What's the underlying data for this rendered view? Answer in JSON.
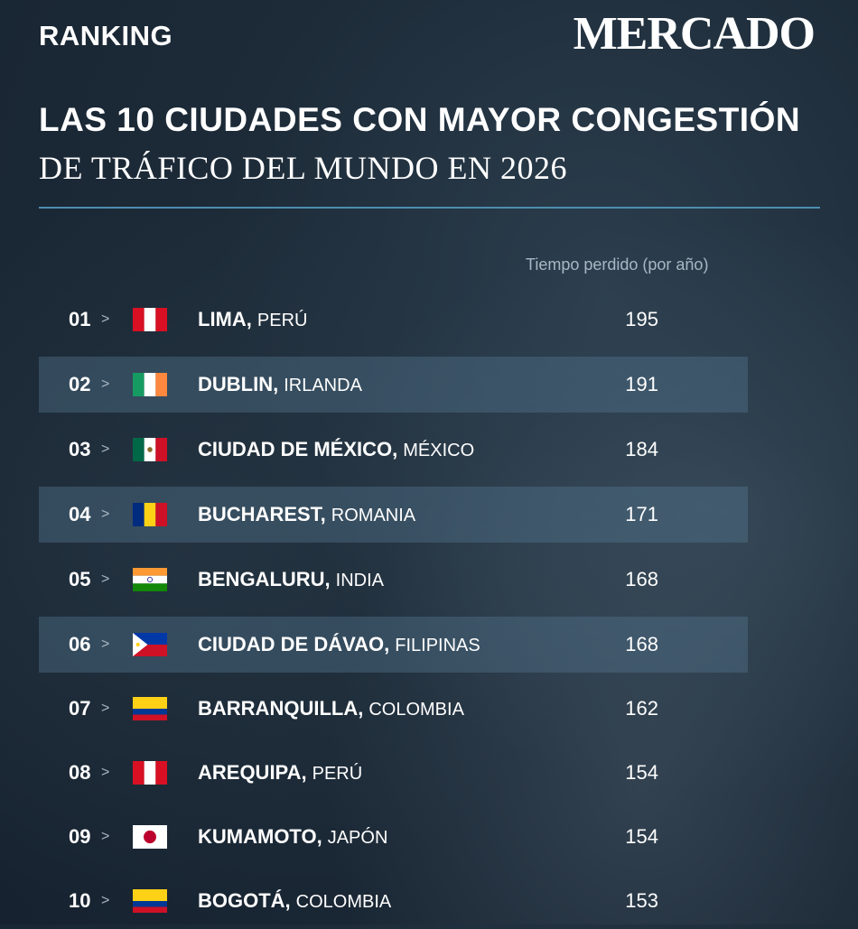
{
  "header": {
    "label": "RANKING",
    "brand": "MERCADO",
    "title_line1": "LAS 10 CIUDADES CON MAYOR CONGESTIÓN",
    "title_line2": "DE TRÁFICO DEL MUNDO EN 2026"
  },
  "table": {
    "column_header": "Tiempo perdido (por año)",
    "arrow": ">",
    "rows": [
      {
        "rank": "01",
        "city": "LIMA,",
        "country": "PERÚ",
        "value": "195",
        "flag": "peru-flag-icon"
      },
      {
        "rank": "02",
        "city": "DUBLIN,",
        "country": "IRLANDA",
        "value": "191",
        "flag": "ireland-flag-icon"
      },
      {
        "rank": "03",
        "city": "CIUDAD DE MÉXICO,",
        "country": "MÉXICO",
        "value": "184",
        "flag": "mexico-flag-icon"
      },
      {
        "rank": "04",
        "city": "BUCHAREST,",
        "country": "ROMANIA",
        "value": "171",
        "flag": "romania-flag-icon"
      },
      {
        "rank": "05",
        "city": "BENGALURU,",
        "country": "INDIA",
        "value": "168",
        "flag": "india-flag-icon"
      },
      {
        "rank": "06",
        "city": "CIUDAD DE DÁVAO,",
        "country": "FILIPINAS",
        "value": "168",
        "flag": "philippines-flag-icon"
      },
      {
        "rank": "07",
        "city": "BARRANQUILLA,",
        "country": "COLOMBIA",
        "value": "162",
        "flag": "colombia-flag-icon"
      },
      {
        "rank": "08",
        "city": "AREQUIPA,",
        "country": "PERÚ",
        "value": "154",
        "flag": "peru-flag-icon"
      },
      {
        "rank": "09",
        "city": "KUMAMOTO,",
        "country": "JAPÓN",
        "value": "154",
        "flag": "japan-flag-icon"
      },
      {
        "rank": "10",
        "city": "BOGOTÁ,",
        "country": "COLOMBIA",
        "value": "153",
        "flag": "colombia-flag-icon"
      }
    ]
  },
  "colors": {
    "background": "#1d2b38",
    "divider": "#4d8db0",
    "row_shade": "#557890",
    "muted_text": "#a9b7c3"
  }
}
